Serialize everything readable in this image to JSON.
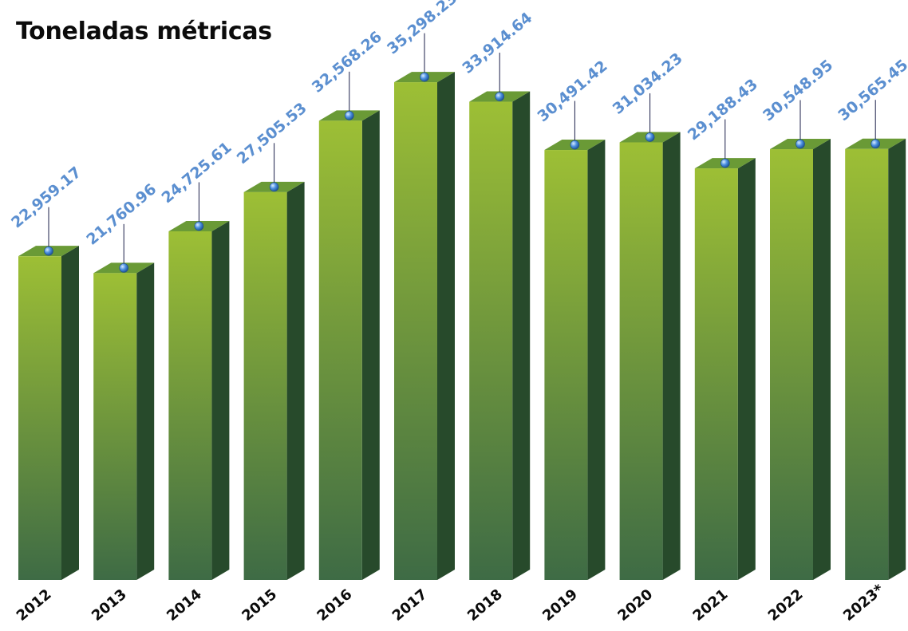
{
  "chart_data": {
    "type": "bar",
    "title": "Toneladas métricas",
    "categories": [
      "2012",
      "2013",
      "2014",
      "2015",
      "2016",
      "2017",
      "2018",
      "2019",
      "2020",
      "2021",
      "2022",
      "2023*"
    ],
    "values": [
      22959.17,
      21760.96,
      24725.61,
      27505.53,
      32568.26,
      35298.23,
      33914.64,
      30491.42,
      31034.23,
      29188.43,
      30548.95,
      30565.45
    ],
    "value_labels": [
      "22,959.17",
      "21,760.96",
      "24,725.61",
      "27,505.53",
      "32,568.26",
      "35,298.23",
      "33,914.64",
      "30,491.42",
      "31,034.23",
      "29,188.43",
      "30,548.95",
      "30,565.45"
    ],
    "ylim": [
      0,
      37000
    ],
    "grid": false,
    "colors": {
      "bar_top": "#9dbf35",
      "bar_bottom": "#3e6b45",
      "bar_side": "#274a2b",
      "bar_cap": "#6a9a36",
      "label": "#5b8fd0",
      "marker": "#4a8fe0"
    }
  }
}
